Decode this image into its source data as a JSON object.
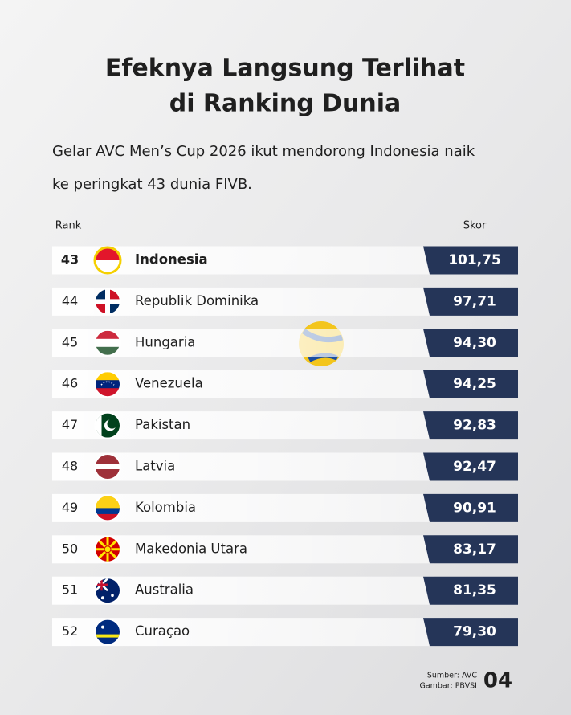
{
  "header": {
    "title_lines": [
      "Efeknya Langsung Terlihat",
      "di Ranking Dunia"
    ],
    "subtitle_lines": [
      "Gelar AVC Men’s Cup 2026 ikut mendorong Indonesia naik",
      "ke peringkat 43 dunia FIVB."
    ]
  },
  "table": {
    "columns": [
      "Rank",
      "Skor"
    ],
    "rows": [
      {
        "rank": 43,
        "country": "Indonesia",
        "score": "101,75"
      },
      {
        "rank": 44,
        "country": "Republik Dominika",
        "score": "97,71"
      },
      {
        "rank": 45,
        "country": "Hungaria",
        "score": "94,30"
      },
      {
        "rank": 46,
        "country": "Venezuela",
        "score": "94,25"
      },
      {
        "rank": 47,
        "country": "Pakistan",
        "score": "92,83"
      },
      {
        "rank": 48,
        "country": "Latvia",
        "score": "92,47"
      },
      {
        "rank": 49,
        "country": "Kolombia",
        "score": "90,91"
      },
      {
        "rank": 50,
        "country": "Makedonia Utara",
        "score": "83,17"
      },
      {
        "rank": 51,
        "country": "Australia",
        "score": "81,35"
      },
      {
        "rank": 52,
        "country": "Curaçao",
        "score": "79,30"
      }
    ]
  },
  "footer": {
    "source": "Sumber: AVC",
    "image_credit": "Gambar: PBVSI",
    "page": "04"
  }
}
